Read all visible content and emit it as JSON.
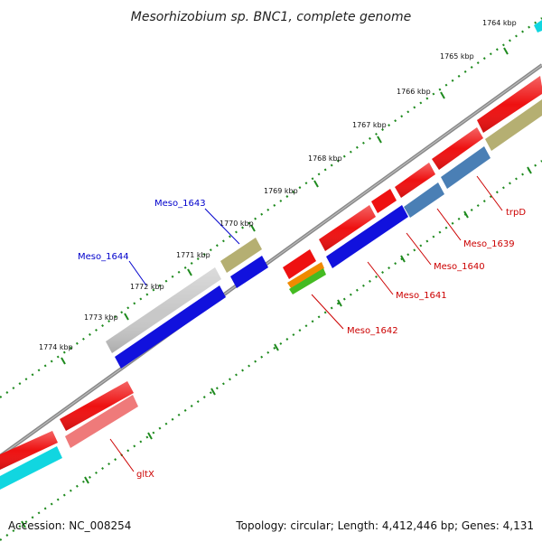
{
  "title": "Mesorhizobium sp. BNC1, complete genome",
  "footer": {
    "accession": "Accession: NC_008254",
    "topology": "Topology: circular; Length: 4,412,446 bp; Genes: 4,131"
  },
  "ruler": {
    "unit": "kbp",
    "ticks": [
      {
        "label": "1764 kbp"
      },
      {
        "label": "1765 kbp"
      },
      {
        "label": "1766 kbp"
      },
      {
        "label": "1767 kbp"
      },
      {
        "label": "1768 kbp"
      },
      {
        "label": "1769 kbp"
      },
      {
        "label": "1770 kbp"
      },
      {
        "label": "1771 kbp"
      },
      {
        "label": "1772 kbp"
      },
      {
        "label": "1773 kbp"
      },
      {
        "label": "1774 kbp"
      }
    ]
  },
  "gene_labels": [
    {
      "text": "Meso_1643",
      "color": "#0000cc"
    },
    {
      "text": "Meso_1644",
      "color": "#0000cc"
    },
    {
      "text": "trpD",
      "color": "#cc0000"
    },
    {
      "text": "Meso_1639",
      "color": "#cc0000"
    },
    {
      "text": "Meso_1640",
      "color": "#cc0000"
    },
    {
      "text": "Meso_1641",
      "color": "#cc0000"
    },
    {
      "text": "Meso_1642",
      "color": "#cc0000"
    },
    {
      "text": "gltX",
      "color": "#cc0000"
    }
  ],
  "colors": {
    "cds": "#ee1111",
    "blue": "#1111dd",
    "steel": "#4a7fb5",
    "khaki": "#b5af72",
    "grey": "#c8c8c8",
    "cyan": "#11d6e0",
    "pink": "#ef7a7a",
    "orange": "#f08a00",
    "green": "#44bb22",
    "backbone": "#888888",
    "dots": "#1e8a1e"
  }
}
